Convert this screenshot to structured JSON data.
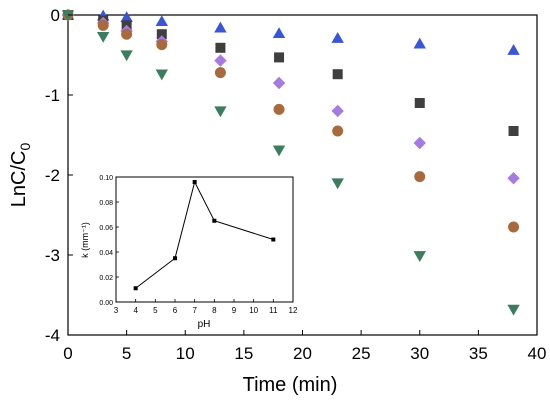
{
  "chart_data": [
    {
      "type": "scatter",
      "title": "",
      "xlabel": "Time (min)",
      "ylabel_main": "LnC/C",
      "ylabel_sub": "0",
      "xlim": [
        0,
        40
      ],
      "ylim": [
        -4,
        0
      ],
      "xticks": [
        0,
        5,
        10,
        15,
        20,
        25,
        30,
        35,
        40
      ],
      "yticks": [
        0,
        -1,
        -2,
        -3,
        -4
      ],
      "grid": false,
      "legend": "none",
      "series": [
        {
          "marker": "triangle-up",
          "color": "#3a55d6",
          "x": [
            0,
            3,
            5,
            8,
            13,
            18,
            23,
            30,
            38
          ],
          "y": [
            0,
            -0.01,
            -0.03,
            -0.08,
            -0.16,
            -0.23,
            -0.29,
            -0.36,
            -0.44
          ]
        },
        {
          "marker": "square",
          "color": "#3f3f3f",
          "x": [
            0,
            3,
            5,
            8,
            13,
            18,
            23,
            30,
            38
          ],
          "y": [
            0,
            -0.07,
            -0.13,
            -0.24,
            -0.41,
            -0.53,
            -0.74,
            -1.1,
            -1.45
          ]
        },
        {
          "marker": "diamond",
          "color": "#a57be0",
          "x": [
            0,
            3,
            5,
            8,
            13,
            18,
            23,
            30,
            38
          ],
          "y": [
            0,
            -0.1,
            -0.2,
            -0.33,
            -0.57,
            -0.85,
            -1.2,
            -1.6,
            -2.04
          ]
        },
        {
          "marker": "circle",
          "color": "#a86a3c",
          "x": [
            0,
            3,
            5,
            8,
            13,
            18,
            23,
            30,
            38
          ],
          "y": [
            0,
            -0.13,
            -0.24,
            -0.37,
            -0.72,
            -1.18,
            -1.45,
            -2.02,
            -2.65
          ]
        },
        {
          "marker": "triangle-down",
          "color": "#3d7d5f",
          "x": [
            0,
            3,
            5,
            8,
            13,
            18,
            23,
            30,
            38
          ],
          "y": [
            0,
            -0.27,
            -0.5,
            -0.74,
            -1.2,
            -1.69,
            -2.1,
            -3.01,
            -3.68
          ]
        }
      ]
    },
    {
      "type": "line",
      "title": "",
      "xlabel": "pH",
      "ylabel": "k (mm⁻¹)",
      "xlim": [
        3,
        12
      ],
      "ylim": [
        0,
        0.1
      ],
      "xticks": [
        3,
        4,
        5,
        6,
        7,
        8,
        9,
        10,
        11,
        12
      ],
      "yticks": [
        0.0,
        0.02,
        0.04,
        0.06,
        0.08,
        0.1
      ],
      "ytick_labels": [
        "0.00",
        "0.02",
        "0.04",
        "0.06",
        "0.08",
        "0.10"
      ],
      "grid": false,
      "legend": "none",
      "series": [
        {
          "marker": "square",
          "color": "#000000",
          "x": [
            4,
            6,
            7,
            8,
            11
          ],
          "y": [
            0.011,
            0.035,
            0.096,
            0.065,
            0.05
          ]
        }
      ]
    }
  ]
}
